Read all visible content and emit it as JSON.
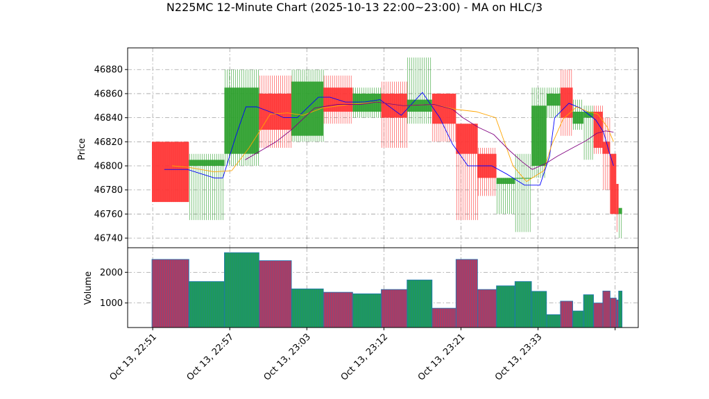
{
  "chart_data": {
    "type": "ohlc-volume",
    "title": "N225MC 12-Minute Chart (2025-10-13 22:00~23:00) - MA on HLC/3",
    "price_panel": {
      "ylabel": "Price",
      "ylim": [
        46732,
        46898
      ],
      "yticks": [
        46740,
        46760,
        46780,
        46800,
        46820,
        46840,
        46860,
        46880
      ]
    },
    "volume_panel": {
      "ylabel": "Volume",
      "ylim": [
        200,
        2800
      ],
      "yticks": [
        1000,
        2000
      ],
      "yticklabels": [
        "1000",
        "2000"
      ]
    },
    "xlim": [
      -0.65,
      12.6
    ],
    "xticks": [
      {
        "pos": 0,
        "label": "Oct 13, 22:51"
      },
      {
        "pos": 2,
        "label": "Oct 13, 22:57"
      },
      {
        "pos": 4,
        "label": "Oct 13, 23:03"
      },
      {
        "pos": 6,
        "label": "Oct 13, 23:12"
      },
      {
        "pos": 8,
        "label": "Oct 13, 23:21"
      },
      {
        "pos": 10,
        "label": "Oct 13, 23:33"
      },
      {
        "pos": 12,
        "label": ""
      }
    ],
    "grid": true,
    "colors": {
      "up": "#2ca02c",
      "down": "#ff3333",
      "ma_fast": "#0000ff",
      "ma_mid": "#ffa500",
      "ma_slow": "#800080",
      "vol_edge": "#1f77b4"
    },
    "candles": [
      {
        "x0": -0.02,
        "x1": 0.94,
        "open": 46820,
        "high": 46820,
        "low": 46770,
        "close": 46770
      },
      {
        "x0": 0.94,
        "x1": 1.86,
        "open": 46800,
        "high": 46810,
        "low": 46755,
        "close": 46805
      },
      {
        "x0": 1.86,
        "x1": 2.76,
        "open": 46810,
        "high": 46880,
        "low": 46800,
        "close": 46865
      },
      {
        "x0": 2.76,
        "x1": 3.6,
        "open": 46860,
        "high": 46875,
        "low": 46815,
        "close": 46830
      },
      {
        "x0": 3.6,
        "x1": 4.43,
        "open": 46825,
        "high": 46880,
        "low": 46820,
        "close": 46870
      },
      {
        "x0": 4.43,
        "x1": 5.19,
        "open": 46865,
        "high": 46875,
        "low": 46835,
        "close": 46845
      },
      {
        "x0": 5.19,
        "x1": 5.93,
        "open": 46845,
        "high": 46865,
        "low": 46840,
        "close": 46860
      },
      {
        "x0": 5.93,
        "x1": 6.6,
        "open": 46860,
        "high": 46870,
        "low": 46815,
        "close": 46840
      },
      {
        "x0": 6.6,
        "x1": 7.25,
        "open": 46845,
        "high": 46890,
        "low": 46835,
        "close": 46855
      },
      {
        "x0": 7.25,
        "x1": 7.87,
        "open": 46860,
        "high": 46860,
        "low": 46820,
        "close": 46835
      },
      {
        "x0": 7.87,
        "x1": 8.43,
        "open": 46835,
        "high": 46835,
        "low": 46755,
        "close": 46810
      },
      {
        "x0": 8.43,
        "x1": 8.92,
        "open": 46810,
        "high": 46815,
        "low": 46775,
        "close": 46790
      },
      {
        "x0": 8.92,
        "x1": 9.4,
        "open": 46785,
        "high": 46790,
        "low": 46760,
        "close": 46790
      },
      {
        "x0": 9.4,
        "x1": 9.83,
        "open": 46790,
        "high": 46810,
        "low": 46745,
        "close": 46790
      },
      {
        "x0": 9.83,
        "x1": 10.22,
        "open": 46800,
        "high": 46865,
        "low": 46790,
        "close": 46850
      },
      {
        "x0": 10.22,
        "x1": 10.58,
        "open": 46850,
        "high": 46865,
        "low": 46840,
        "close": 46860
      },
      {
        "x0": 10.58,
        "x1": 10.9,
        "open": 46865,
        "high": 46880,
        "low": 46825,
        "close": 46840
      },
      {
        "x0": 10.9,
        "x1": 11.18,
        "open": 46835,
        "high": 46855,
        "low": 46830,
        "close": 46845
      },
      {
        "x0": 11.18,
        "x1": 11.44,
        "open": 46840,
        "high": 46850,
        "low": 46805,
        "close": 46845
      },
      {
        "x0": 11.44,
        "x1": 11.68,
        "open": 46845,
        "high": 46850,
        "low": 46810,
        "close": 46815
      },
      {
        "x0": 11.68,
        "x1": 11.87,
        "open": 46820,
        "high": 46840,
        "low": 46780,
        "close": 46810
      },
      {
        "x0": 11.87,
        "x1": 12.03,
        "open": 46810,
        "high": 46810,
        "low": 46760,
        "close": 46760
      },
      {
        "x0": 12.03,
        "x1": 12.09,
        "open": 46785,
        "high": 46785,
        "low": 46745,
        "close": 46760
      },
      {
        "x0": 12.09,
        "x1": 12.18,
        "open": 46760,
        "high": 46765,
        "low": 46740,
        "close": 46765
      }
    ],
    "volume": [
      2420,
      1700,
      2640,
      2380,
      1460,
      1350,
      1300,
      1440,
      1750,
      830,
      2420,
      1440,
      1560,
      1700,
      1380,
      620,
      1060,
      740,
      1270,
      1000,
      1390,
      1160,
      1100,
      1390
    ],
    "ma_lines": [
      {
        "color": "#0000ff",
        "points": [
          [
            0.3,
            46797
          ],
          [
            0.9,
            46797
          ],
          [
            1.6,
            46790
          ],
          [
            1.82,
            46790
          ],
          [
            2.16,
            46825
          ],
          [
            2.42,
            46849
          ],
          [
            2.7,
            46849
          ],
          [
            3.2,
            46843
          ],
          [
            3.4,
            46840
          ],
          [
            3.75,
            46840
          ],
          [
            4.3,
            46857
          ],
          [
            4.6,
            46857
          ],
          [
            5.0,
            46853
          ],
          [
            5.5,
            46853
          ],
          [
            5.9,
            46855
          ],
          [
            6.45,
            46842
          ],
          [
            7.0,
            46861
          ],
          [
            7.45,
            46840
          ],
          [
            7.78,
            46818
          ],
          [
            8.18,
            46800
          ],
          [
            8.8,
            46800
          ],
          [
            9.2,
            46793
          ],
          [
            9.65,
            46784
          ],
          [
            10.05,
            46784
          ],
          [
            10.3,
            46808
          ],
          [
            10.43,
            46840
          ],
          [
            10.8,
            46852
          ],
          [
            11.1,
            46848
          ],
          [
            11.5,
            46838
          ],
          [
            11.7,
            46828
          ],
          [
            11.85,
            46811
          ],
          [
            11.96,
            46800
          ]
        ]
      },
      {
        "color": "#ffa500",
        "points": [
          [
            0.5,
            46800
          ],
          [
            0.9,
            46799
          ],
          [
            1.6,
            46795
          ],
          [
            2.05,
            46796
          ],
          [
            2.5,
            46815
          ],
          [
            2.8,
            46830
          ],
          [
            3.05,
            46843
          ],
          [
            3.5,
            46844
          ],
          [
            3.9,
            46842
          ],
          [
            4.4,
            46848
          ],
          [
            5.1,
            46851
          ],
          [
            5.8,
            46853
          ],
          [
            6.5,
            46850
          ],
          [
            7.3,
            46851
          ],
          [
            7.85,
            46847
          ],
          [
            8.4,
            46845
          ],
          [
            8.9,
            46840
          ],
          [
            9.35,
            46800
          ],
          [
            9.7,
            46787
          ],
          [
            10.15,
            46796
          ],
          [
            10.35,
            46817
          ],
          [
            10.65,
            46839
          ],
          [
            11.0,
            46849
          ],
          [
            11.3,
            46845
          ],
          [
            11.55,
            46843
          ],
          [
            11.8,
            46832
          ],
          [
            11.96,
            46820
          ]
        ]
      },
      {
        "color": "#800080",
        "points": [
          [
            2.4,
            46805
          ],
          [
            3.2,
            46820
          ],
          [
            3.6,
            46830
          ],
          [
            4.2,
            46848
          ],
          [
            4.8,
            46851
          ],
          [
            5.4,
            46851
          ],
          [
            5.8,
            46853
          ],
          [
            6.5,
            46850
          ],
          [
            7.3,
            46851
          ],
          [
            7.78,
            46847
          ],
          [
            8.05,
            46840
          ],
          [
            8.45,
            46832
          ],
          [
            8.85,
            46826
          ],
          [
            9.25,
            46813
          ],
          [
            9.6,
            46803
          ],
          [
            9.85,
            46797
          ],
          [
            10.2,
            46802
          ],
          [
            10.5,
            46808
          ],
          [
            10.9,
            46815
          ],
          [
            11.25,
            46821
          ],
          [
            11.52,
            46827
          ],
          [
            11.75,
            46829
          ],
          [
            11.96,
            46828
          ]
        ]
      }
    ]
  }
}
